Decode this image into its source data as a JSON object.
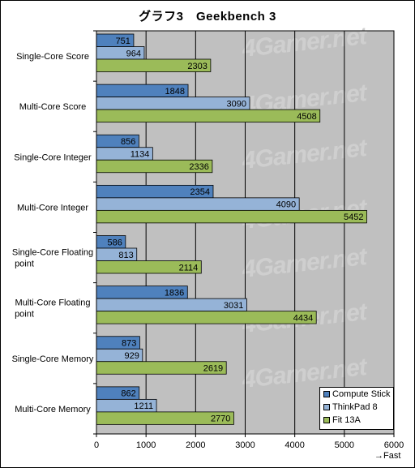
{
  "chart_data": {
    "type": "bar",
    "orientation": "horizontal",
    "title": "グラフ3　Geekbench 3",
    "categories": [
      "Single-Core Score",
      "Multi-Core Score",
      "Single-Core Integer",
      "Multi-Core Integer",
      "Single-Core Floating point",
      "Multi-Core Floating point",
      "Single-Core Memory",
      "Multi-Core Memory"
    ],
    "series": [
      {
        "name": "Compute Stick",
        "color": "#4f81bd",
        "values": [
          751,
          1848,
          856,
          2354,
          586,
          1836,
          873,
          862
        ]
      },
      {
        "name": "ThinkPad 8",
        "color": "#95b3d7",
        "values": [
          964,
          3090,
          1134,
          4090,
          813,
          3031,
          929,
          1211
        ]
      },
      {
        "name": "Fit 13A",
        "color": "#9bbb59",
        "values": [
          2303,
          4508,
          2336,
          5452,
          2114,
          4434,
          2619,
          2770
        ]
      }
    ],
    "xlim": [
      0,
      6000
    ],
    "xticks": [
      0,
      1000,
      2000,
      3000,
      4000,
      5000,
      6000
    ],
    "xlabel": "→Fast",
    "grid": true,
    "legend": "bottom-right",
    "watermark": "4Gamer.net"
  }
}
